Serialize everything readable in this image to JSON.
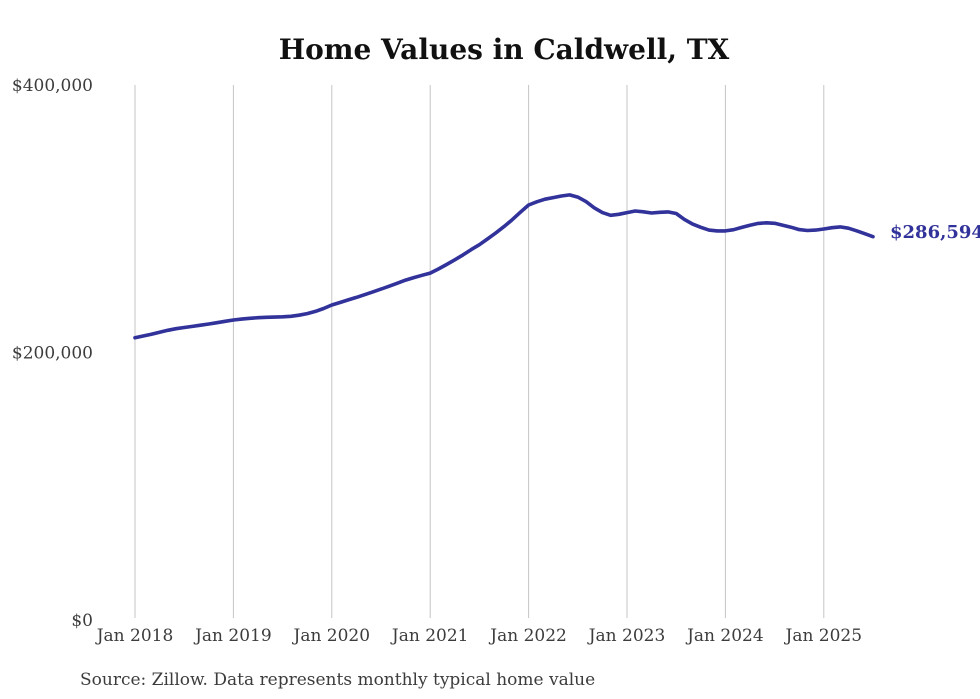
{
  "chart_data": {
    "type": "line",
    "title": "Home Values in Caldwell, TX",
    "source_note": "Source: Zillow. Data represents monthly typical home value",
    "series_name": "Monthly typical home value",
    "end_label": "$286,594",
    "end_value": 286594,
    "line_color": "#32329B",
    "grid_color": "#C4C4C4",
    "text_color": "#3C3C3C",
    "title_color": "#111111",
    "background_color": "#FFFFFF",
    "legend": "none",
    "grid": "vertical-only",
    "xlabel": "",
    "ylabel": "",
    "ylim": [
      0,
      400000
    ],
    "y_ticks": [
      {
        "value": 400000,
        "label": "$400,000"
      },
      {
        "value": 200000,
        "label": "$200,000"
      },
      {
        "value": 0,
        "label": "$0"
      }
    ],
    "x_tick_labels": [
      "Jan 2018",
      "Jan 2019",
      "Jan 2020",
      "Jan 2021",
      "Jan 2022",
      "Jan 2023",
      "Jan 2024",
      "Jan 2025"
    ],
    "x": [
      "2018-01",
      "2018-02",
      "2018-03",
      "2018-04",
      "2018-05",
      "2018-06",
      "2018-07",
      "2018-08",
      "2018-09",
      "2018-10",
      "2018-11",
      "2018-12",
      "2019-01",
      "2019-02",
      "2019-03",
      "2019-04",
      "2019-05",
      "2019-06",
      "2019-07",
      "2019-08",
      "2019-09",
      "2019-10",
      "2019-11",
      "2019-12",
      "2020-01",
      "2020-02",
      "2020-03",
      "2020-04",
      "2020-05",
      "2020-06",
      "2020-07",
      "2020-08",
      "2020-09",
      "2020-10",
      "2020-11",
      "2020-12",
      "2021-01",
      "2021-02",
      "2021-03",
      "2021-04",
      "2021-05",
      "2021-06",
      "2021-07",
      "2021-08",
      "2021-09",
      "2021-10",
      "2021-11",
      "2021-12",
      "2022-01",
      "2022-02",
      "2022-03",
      "2022-04",
      "2022-05",
      "2022-06",
      "2022-07",
      "2022-08",
      "2022-09",
      "2022-10",
      "2022-11",
      "2022-12",
      "2023-01",
      "2023-02",
      "2023-03",
      "2023-04",
      "2023-05",
      "2023-06",
      "2023-07",
      "2023-08",
      "2023-09",
      "2023-10",
      "2023-11",
      "2023-12",
      "2024-01",
      "2024-02",
      "2024-03",
      "2024-04",
      "2024-05",
      "2024-06",
      "2024-07",
      "2024-08",
      "2024-09",
      "2024-10",
      "2024-11",
      "2024-12",
      "2025-01",
      "2025-02",
      "2025-03",
      "2025-04",
      "2025-05",
      "2025-06",
      "2025-07"
    ],
    "values": [
      211000,
      212300,
      213700,
      215200,
      216600,
      217800,
      218700,
      219500,
      220400,
      221300,
      222300,
      223300,
      224300,
      225000,
      225600,
      226000,
      226300,
      226500,
      226700,
      227100,
      227900,
      229100,
      230700,
      232900,
      235500,
      237400,
      239300,
      241200,
      243200,
      245300,
      247400,
      249600,
      251800,
      254100,
      256000,
      257700,
      259400,
      262400,
      265800,
      269300,
      273000,
      276900,
      280600,
      284900,
      289400,
      294100,
      299300,
      304900,
      310300,
      312700,
      314600,
      315800,
      317000,
      317800,
      316200,
      312800,
      308200,
      304600,
      302600,
      303300,
      304600,
      305800,
      305200,
      304300,
      304800,
      305100,
      303900,
      299500,
      296000,
      293600,
      291500,
      290900,
      290900,
      291800,
      293500,
      295200,
      296500,
      297000,
      296600,
      295200,
      293700,
      291900,
      291200,
      291500,
      292300,
      293300,
      293900,
      292900,
      291000,
      288800,
      286594
    ]
  }
}
